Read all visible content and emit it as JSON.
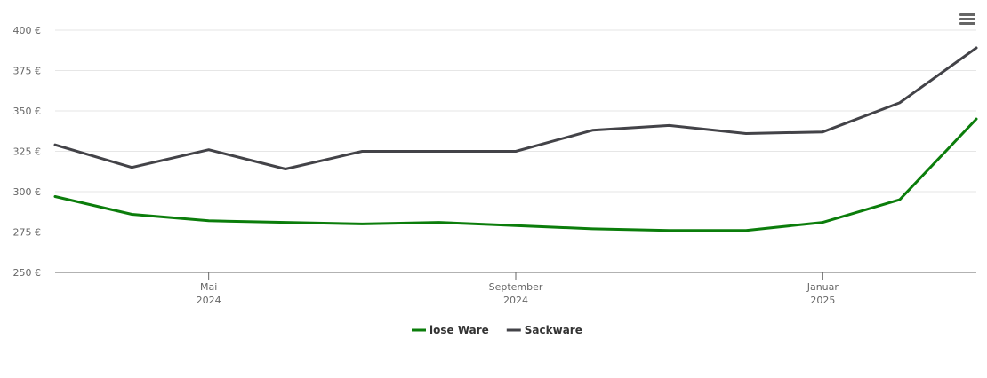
{
  "chart_data": {
    "type": "line",
    "x": [
      "2024-03",
      "2024-04",
      "2024-05",
      "2024-06",
      "2024-07",
      "2024-08",
      "2024-09",
      "2024-10",
      "2024-11",
      "2024-12",
      "2025-01",
      "2025-02",
      "2025-03"
    ],
    "series": [
      {
        "name": "lose Ware",
        "color": "#0b7d0b",
        "values": [
          297,
          286,
          282,
          281,
          280,
          281,
          279,
          277,
          276,
          276,
          281,
          295,
          345
        ]
      },
      {
        "name": "Sackware",
        "color": "#434348",
        "values": [
          329,
          315,
          326,
          314,
          325,
          325,
          325,
          338,
          341,
          336,
          337,
          355,
          389
        ]
      }
    ],
    "xlim": [
      "2024-03",
      "2025-03"
    ],
    "xticks": [
      {
        "value": "2024-05",
        "label": [
          "Mai",
          "2024"
        ]
      },
      {
        "value": "2024-09",
        "label": [
          "September",
          "2024"
        ]
      },
      {
        "value": "2025-01",
        "label": [
          "Januar",
          "2025"
        ]
      }
    ],
    "ylim": [
      250,
      400
    ],
    "yticks": [
      {
        "value": 250,
        "label": "250 €"
      },
      {
        "value": 275,
        "label": "275 €"
      },
      {
        "value": 300,
        "label": "300 €"
      },
      {
        "value": 325,
        "label": "325 €"
      },
      {
        "value": 350,
        "label": "350 €"
      },
      {
        "value": 375,
        "label": "375 €"
      },
      {
        "value": 400,
        "label": "400 €"
      }
    ],
    "grid": true,
    "legend": "bottom"
  }
}
